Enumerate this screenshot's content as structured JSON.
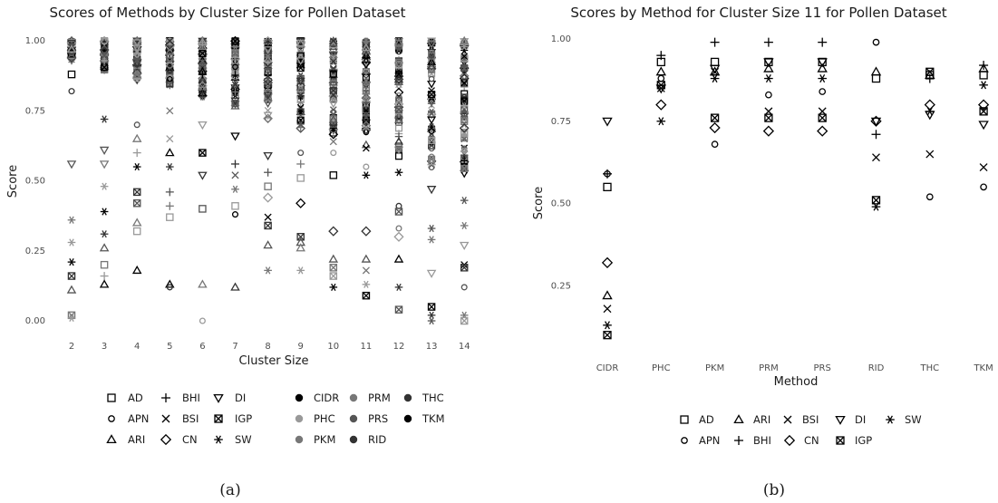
{
  "colors": {
    "text": "#1a1a1a",
    "tick": "#4d4d4d",
    "g1": "#000000",
    "g2": "#333333",
    "g3": "#555555",
    "g4": "#777777",
    "g5": "#999999"
  },
  "chart_data": [
    {
      "type": "scatter",
      "panel": "(a)",
      "title": "Scores of Methods by Cluster Size for Pollen Dataset",
      "xlabel": "Cluster Size",
      "ylabel": "Score",
      "categories": [
        "2",
        "3",
        "4",
        "5",
        "6",
        "7",
        "8",
        "9",
        "10",
        "11",
        "12",
        "13",
        "14"
      ],
      "y_ticks": [
        "0.00",
        "0.25",
        "0.50",
        "0.75",
        "1.00"
      ],
      "ylim": [
        0,
        1
      ],
      "grid": false,
      "shape_legend": [
        "AD",
        "BHI",
        "DI",
        "APN",
        "BSI",
        "IGP",
        "ARI",
        "CN",
        "SW"
      ],
      "color_legend": [
        "CIDR",
        "PRM",
        "THC",
        "PHC",
        "PRS",
        "TKM",
        "PKM",
        "RID"
      ],
      "distinct_points": {
        "2": [
          [
            0.88,
            "AD"
          ],
          [
            0.82,
            "APN"
          ],
          [
            0.56,
            "DI"
          ],
          [
            0.36,
            "SW"
          ],
          [
            0.28,
            "SW"
          ],
          [
            0.21,
            "SW"
          ],
          [
            0.16,
            "IGP"
          ],
          [
            0.11,
            "ARI"
          ],
          [
            0.02,
            "IGP"
          ],
          [
            0.01,
            "SW"
          ]
        ],
        "3": [
          [
            0.72,
            "SW"
          ],
          [
            0.61,
            "DI"
          ],
          [
            0.56,
            "DI"
          ],
          [
            0.48,
            "SW"
          ],
          [
            0.39,
            "SW"
          ],
          [
            0.31,
            "SW"
          ],
          [
            0.26,
            "ARI"
          ],
          [
            0.2,
            "AD"
          ],
          [
            0.16,
            "BHI"
          ],
          [
            0.13,
            "ARI"
          ]
        ],
        "4": [
          [
            0.7,
            "APN"
          ],
          [
            0.65,
            "ARI"
          ],
          [
            0.6,
            "BHI"
          ],
          [
            0.55,
            "SW"
          ],
          [
            0.46,
            "IGP"
          ],
          [
            0.42,
            "IGP"
          ],
          [
            0.35,
            "ARI"
          ],
          [
            0.32,
            "AD"
          ],
          [
            0.18,
            "ARI"
          ]
        ],
        "5": [
          [
            0.75,
            "BSI"
          ],
          [
            0.65,
            "BSI"
          ],
          [
            0.6,
            "ARI"
          ],
          [
            0.55,
            "SW"
          ],
          [
            0.46,
            "BHI"
          ],
          [
            0.41,
            "BHI"
          ],
          [
            0.37,
            "AD"
          ],
          [
            0.13,
            "ARI"
          ],
          [
            0.12,
            "APN"
          ]
        ],
        "6": [
          [
            0.7,
            "DI"
          ],
          [
            0.6,
            "IGP"
          ],
          [
            0.52,
            "DI"
          ],
          [
            0.4,
            "AD"
          ],
          [
            0.13,
            "ARI"
          ],
          [
            0.0,
            "APN"
          ]
        ],
        "7": [
          [
            0.66,
            "DI"
          ],
          [
            0.56,
            "BHI"
          ],
          [
            0.52,
            "BSI"
          ],
          [
            0.47,
            "SW"
          ],
          [
            0.41,
            "AD"
          ],
          [
            0.38,
            "APN"
          ],
          [
            0.12,
            "ARI"
          ]
        ],
        "8": [
          [
            0.59,
            "DI"
          ],
          [
            0.53,
            "BHI"
          ],
          [
            0.48,
            "AD"
          ],
          [
            0.44,
            "CN"
          ],
          [
            0.37,
            "BSI"
          ],
          [
            0.34,
            "IGP"
          ],
          [
            0.27,
            "ARI"
          ],
          [
            0.18,
            "SW"
          ]
        ],
        "9": [
          [
            0.6,
            "APN"
          ],
          [
            0.56,
            "BHI"
          ],
          [
            0.51,
            "AD"
          ],
          [
            0.42,
            "CN"
          ],
          [
            0.3,
            "IGP"
          ],
          [
            0.28,
            "ARI"
          ],
          [
            0.26,
            "ARI"
          ],
          [
            0.18,
            "SW"
          ]
        ],
        "10": [
          [
            0.64,
            "BSI"
          ],
          [
            0.6,
            "APN"
          ],
          [
            0.52,
            "AD"
          ],
          [
            0.32,
            "CN"
          ],
          [
            0.22,
            "ARI"
          ],
          [
            0.19,
            "IGP"
          ],
          [
            0.16,
            "IGP"
          ],
          [
            0.12,
            "SW"
          ]
        ],
        "11": [
          [
            0.55,
            "APN"
          ],
          [
            0.52,
            "SW"
          ],
          [
            0.32,
            "CN"
          ],
          [
            0.22,
            "ARI"
          ],
          [
            0.18,
            "BSI"
          ],
          [
            0.13,
            "SW"
          ],
          [
            0.09,
            "IGP"
          ]
        ],
        "12": [
          [
            0.53,
            "SW"
          ],
          [
            0.41,
            "APN"
          ],
          [
            0.39,
            "IGP"
          ],
          [
            0.33,
            "APN"
          ],
          [
            0.3,
            "CN"
          ],
          [
            0.22,
            "ARI"
          ],
          [
            0.12,
            "SW"
          ],
          [
            0.04,
            "IGP"
          ]
        ],
        "13": [
          [
            0.47,
            "DI"
          ],
          [
            0.33,
            "SW"
          ],
          [
            0.29,
            "SW"
          ],
          [
            0.17,
            "DI"
          ],
          [
            0.05,
            "IGP"
          ],
          [
            0.02,
            "SW"
          ],
          [
            0.0,
            "SW"
          ]
        ],
        "14": [
          [
            0.43,
            "SW"
          ],
          [
            0.34,
            "SW"
          ],
          [
            0.27,
            "DI"
          ],
          [
            0.2,
            "BSI"
          ],
          [
            0.19,
            "IGP"
          ],
          [
            0.12,
            "APN"
          ],
          [
            0.02,
            "SW"
          ],
          [
            0.0,
            "IGP"
          ]
        ]
      }
    },
    {
      "type": "scatter",
      "panel": "(b)",
      "title": "Scores by Method for Cluster Size 11 for Pollen Dataset",
      "xlabel": "Method",
      "ylabel": "Score",
      "categories": [
        "CIDR",
        "PHC",
        "PKM",
        "PRM",
        "PRS",
        "RID",
        "THC",
        "TKM"
      ],
      "y_ticks": [
        "0.25",
        "0.50",
        "0.75",
        "1.00"
      ],
      "ylim": [
        0,
        1
      ],
      "grid": false,
      "legend": [
        "AD",
        "ARI",
        "BSI",
        "DI",
        "SW",
        "APN",
        "BHI",
        "CN",
        "IGP"
      ],
      "points": {
        "CIDR": {
          "AD": 0.55,
          "ARI": 0.22,
          "BSI": 0.18,
          "DI": 0.75,
          "SW": 0.13,
          "APN": 0.59,
          "BHI": 0.59,
          "CN": 0.32,
          "IGP": 0.1
        },
        "PHC": {
          "AD": 0.93,
          "ARI": 0.9,
          "BSI": 0.85,
          "DI": 0.85,
          "SW": 0.75,
          "APN": 0.88,
          "BHI": 0.95,
          "CN": 0.8,
          "IGP": 0.86
        },
        "PKM": {
          "AD": 0.93,
          "ARI": 0.9,
          "BSI": 0.9,
          "DI": 0.91,
          "SW": 0.88,
          "APN": 0.68,
          "BHI": 0.99,
          "CN": 0.73,
          "IGP": 0.76
        },
        "PRM": {
          "AD": 0.93,
          "ARI": 0.91,
          "BSI": 0.78,
          "DI": 0.93,
          "SW": 0.88,
          "APN": 0.83,
          "BHI": 0.99,
          "CN": 0.72,
          "IGP": 0.76
        },
        "PRS": {
          "AD": 0.93,
          "ARI": 0.91,
          "BSI": 0.78,
          "DI": 0.93,
          "SW": 0.88,
          "APN": 0.84,
          "BHI": 0.99,
          "CN": 0.72,
          "IGP": 0.76
        },
        "RID": {
          "AD": 0.88,
          "ARI": 0.9,
          "BSI": 0.64,
          "DI": 0.75,
          "SW": 0.49,
          "APN": 0.99,
          "BHI": 0.71,
          "CN": 0.75,
          "IGP": 0.51
        },
        "THC": {
          "AD": 0.89,
          "ARI": 0.89,
          "BSI": 0.65,
          "DI": 0.77,
          "SW": 0.78,
          "APN": 0.52,
          "BHI": 0.88,
          "CN": 0.8,
          "IGP": 0.9
        },
        "TKM": {
          "AD": 0.89,
          "ARI": 0.91,
          "BSI": 0.61,
          "DI": 0.74,
          "SW": 0.86,
          "APN": 0.55,
          "BHI": 0.92,
          "CN": 0.8,
          "IGP": 0.78
        }
      }
    }
  ]
}
